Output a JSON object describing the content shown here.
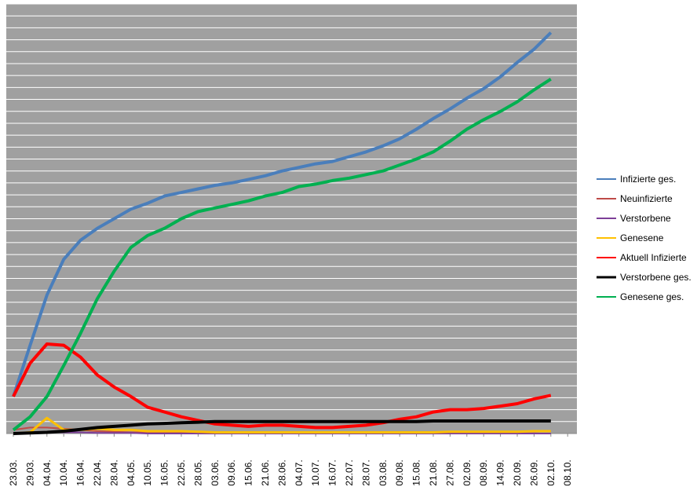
{
  "chart_data": {
    "type": "line",
    "categories": [
      "23.03.",
      "29.03.",
      "04.04.",
      "10.04.",
      "16.04.",
      "22.04.",
      "28.04.",
      "04.05.",
      "10.05.",
      "16.05.",
      "22.05.",
      "28.05.",
      "03.06.",
      "09.06.",
      "15.06.",
      "21.06.",
      "28.06.",
      "04.07.",
      "10.07.",
      "16.07.",
      "22.07.",
      "28.07.",
      "03.08.",
      "09.08.",
      "15.08.",
      "21.08.",
      "27.08.",
      "02.09.",
      "08.09.",
      "14.09.",
      "20.09.",
      "26.09.",
      "02.10.",
      "08.10."
    ],
    "ylim": [
      0,
      36
    ],
    "grid": true,
    "legend": "right",
    "series": [
      {
        "name": "Infizierte ges.",
        "color": "#4a7ebb",
        "values": [
          3.1,
          7.4,
          11.6,
          14.6,
          16.2,
          17.2,
          18.0,
          18.8,
          19.3,
          19.9,
          20.2,
          20.5,
          20.8,
          21.0,
          21.3,
          21.6,
          22.0,
          22.3,
          22.6,
          22.8,
          23.2,
          23.6,
          24.1,
          24.7,
          25.5,
          26.4,
          27.2,
          28.1,
          28.9,
          29.9,
          31.1,
          32.2,
          33.6,
          null
        ]
      },
      {
        "name": "Neuinfizierte",
        "color": "#be4b48",
        "values": [
          0.3,
          0.5,
          0.5,
          0.4,
          0.3,
          0.2,
          0.15,
          0.1,
          0.1,
          0.1,
          0.05,
          0.05,
          0.05,
          0.05,
          0.05,
          0.05,
          0.05,
          0.05,
          0.05,
          0.05,
          0.05,
          0.1,
          0.1,
          0.1,
          0.1,
          0.1,
          0.1,
          0.1,
          0.1,
          0.1,
          0.15,
          0.15,
          0.2,
          null
        ]
      },
      {
        "name": "Verstorbene",
        "color": "#7d3f98",
        "values": [
          0,
          0.05,
          0.1,
          0.1,
          0.1,
          0.05,
          0.05,
          0.05,
          0,
          0,
          0,
          0,
          0,
          0,
          0,
          0,
          0,
          0,
          0,
          0,
          0,
          0,
          0,
          0,
          0,
          0,
          0,
          0,
          0,
          0,
          0,
          0,
          0,
          null
        ]
      },
      {
        "name": "Genesene",
        "color": "#ffc000",
        "values": [
          0,
          0.1,
          1.3,
          0.3,
          0.3,
          0.4,
          0.3,
          0.3,
          0.2,
          0.2,
          0.2,
          0.15,
          0.1,
          0.1,
          0.1,
          0.1,
          0.1,
          0.1,
          0.1,
          0.1,
          0.1,
          0.1,
          0.1,
          0.1,
          0.1,
          0.1,
          0.15,
          0.15,
          0.15,
          0.15,
          0.15,
          0.2,
          0.2,
          null
        ]
      },
      {
        "name": "Aktuell Infizierte",
        "color": "#ff0000",
        "values": [
          3.1,
          5.9,
          7.5,
          7.4,
          6.4,
          4.9,
          3.9,
          3.1,
          2.2,
          1.8,
          1.4,
          1.1,
          0.8,
          0.7,
          0.6,
          0.7,
          0.7,
          0.6,
          0.5,
          0.5,
          0.6,
          0.7,
          0.9,
          1.2,
          1.4,
          1.8,
          2.0,
          2.0,
          2.1,
          2.3,
          2.5,
          2.9,
          3.2,
          null
        ]
      },
      {
        "name": "Verstorbene ges.",
        "color": "#000000",
        "values": [
          0,
          0.05,
          0.1,
          0.2,
          0.35,
          0.5,
          0.6,
          0.7,
          0.8,
          0.85,
          0.9,
          0.95,
          1.0,
          1.0,
          1.0,
          1.0,
          1.0,
          1.0,
          1.0,
          1.0,
          1.0,
          1.0,
          1.0,
          1.0,
          1.0,
          1.05,
          1.05,
          1.05,
          1.05,
          1.05,
          1.05,
          1.05,
          1.05,
          null
        ]
      },
      {
        "name": "Genesene ges.",
        "color": "#00b050",
        "values": [
          0.3,
          1.4,
          3.1,
          5.7,
          8.4,
          11.3,
          13.6,
          15.6,
          16.6,
          17.2,
          18.0,
          18.6,
          18.9,
          19.2,
          19.5,
          19.9,
          20.2,
          20.7,
          20.9,
          21.2,
          21.4,
          21.7,
          22.0,
          22.5,
          23.0,
          23.6,
          24.5,
          25.5,
          26.3,
          27.0,
          27.8,
          28.8,
          29.7,
          null
        ]
      }
    ]
  }
}
